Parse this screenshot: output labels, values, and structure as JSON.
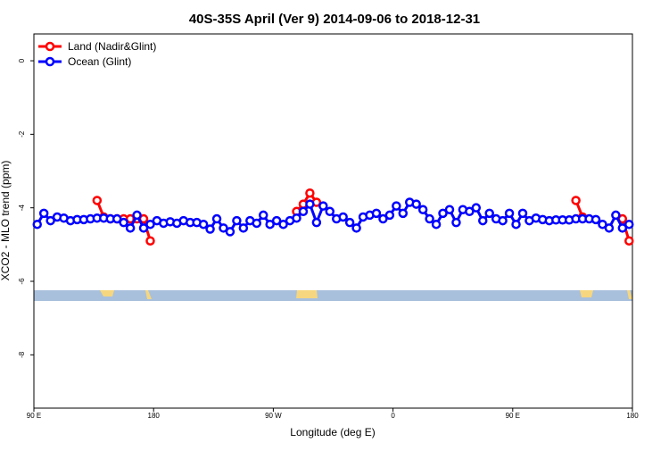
{
  "chart_data": {
    "type": "line",
    "title": "40S-35S April (Ver 9)   2014-09-06 to 2018-12-31",
    "x_label": "Longitude (deg E)",
    "y_label": "XCO2 - MLO trend (ppm)",
    "x": [
      92.5,
      97.5,
      102.5,
      107.5,
      112.5,
      117.5,
      122.5,
      127.5,
      132.5,
      137.5,
      142.5,
      147.5,
      152.5,
      157.5,
      162.5,
      167.5,
      172.5,
      177.5,
      182.5,
      187.5,
      192.5,
      197.5,
      202.5,
      207.5,
      212.5,
      217.5,
      222.5,
      227.5,
      232.5,
      237.5,
      242.5,
      247.5,
      252.5,
      257.5,
      262.5,
      267.5,
      272.5,
      277.5,
      282.5,
      287.5,
      292.5,
      297.5,
      302.5,
      307.5,
      312.5,
      317.5,
      322.5,
      327.5,
      332.5,
      337.5,
      342.5,
      347.5,
      352.5,
      357.5,
      362.5,
      367.5,
      372.5,
      377.5,
      382.5,
      387.5,
      392.5,
      397.5,
      402.5,
      407.5,
      412.5,
      417.5,
      422.5,
      427.5,
      432.5,
      437.5,
      442.5,
      447.5,
      452.5,
      457.5,
      462.5,
      467.5,
      472.5,
      477.5,
      482.5,
      487.5,
      492.5,
      497.5,
      502.5,
      507.5,
      512.5,
      517.5,
      522.5,
      527.5,
      532.5,
      537.5
    ],
    "series": [
      {
        "name": "Land (Nadir&Glint)",
        "color": "#ff0000",
        "values": [
          null,
          null,
          null,
          null,
          null,
          null,
          null,
          null,
          null,
          -3.8,
          -4.25,
          -4.3,
          -4.3,
          -4.3,
          -4.3,
          -4.3,
          -4.3,
          -4.9,
          null,
          null,
          null,
          null,
          null,
          null,
          null,
          null,
          null,
          null,
          null,
          null,
          null,
          null,
          null,
          null,
          null,
          null,
          null,
          null,
          null,
          -4.1,
          -3.9,
          -3.6,
          -3.85,
          null,
          null,
          null,
          null,
          null,
          null,
          null,
          null,
          null,
          null,
          null,
          null,
          null,
          null,
          null,
          null,
          null,
          null,
          null,
          null,
          null,
          null,
          null,
          null,
          null,
          null,
          null,
          null,
          null,
          null,
          null,
          null,
          null,
          null,
          null,
          null,
          null,
          null,
          -3.8,
          -4.25,
          null,
          null,
          null,
          null,
          null,
          -4.3,
          -4.9
        ]
      },
      {
        "name": "Ocean (Glint)",
        "color": "#0000ff",
        "values": [
          -4.45,
          -4.15,
          -4.35,
          -4.25,
          -4.28,
          -4.35,
          -4.32,
          -4.32,
          -4.3,
          -4.28,
          -4.28,
          -4.3,
          -4.3,
          -4.4,
          -4.55,
          -4.2,
          -4.55,
          -4.45,
          -4.35,
          -4.42,
          -4.38,
          -4.42,
          -4.35,
          -4.4,
          -4.4,
          -4.45,
          -4.58,
          -4.3,
          -4.55,
          -4.65,
          -4.35,
          -4.55,
          -4.35,
          -4.42,
          -4.2,
          -4.45,
          -4.35,
          -4.45,
          -4.35,
          -4.28,
          -4.1,
          -3.9,
          -4.4,
          -3.95,
          -4.1,
          -4.3,
          -4.25,
          -4.4,
          -4.55,
          -4.25,
          -4.2,
          -4.15,
          -4.3,
          -4.2,
          -3.95,
          -4.15,
          -3.85,
          -3.9,
          -4.05,
          -4.3,
          -4.45,
          -4.15,
          -4.05,
          -4.4,
          -4.05,
          -4.1,
          -4.0,
          -4.35,
          -4.15,
          -4.3,
          -4.35,
          -4.15,
          -4.45,
          -4.15,
          -4.35,
          -4.28,
          -4.32,
          -4.35,
          -4.33,
          -4.33,
          -4.33,
          -4.3,
          -4.3,
          -4.3,
          -4.32,
          -4.45,
          -4.55,
          -4.2,
          -4.55,
          -4.45
        ]
      }
    ],
    "xlim": [
      90,
      540
    ],
    "xticks": [
      {
        "value": 90,
        "label": "90 E"
      },
      180,
      {
        "value": 270,
        "label": "90 W"
      },
      {
        "value": 360,
        "label": "0"
      },
      {
        "value": 450,
        "label": "90 E"
      },
      {
        "value": 540,
        "label": "180"
      }
    ],
    "ylim": [
      -9.45,
      0.73
    ],
    "yticks": [
      0,
      -2,
      -4,
      -6,
      -8
    ],
    "legend": "top-left"
  }
}
